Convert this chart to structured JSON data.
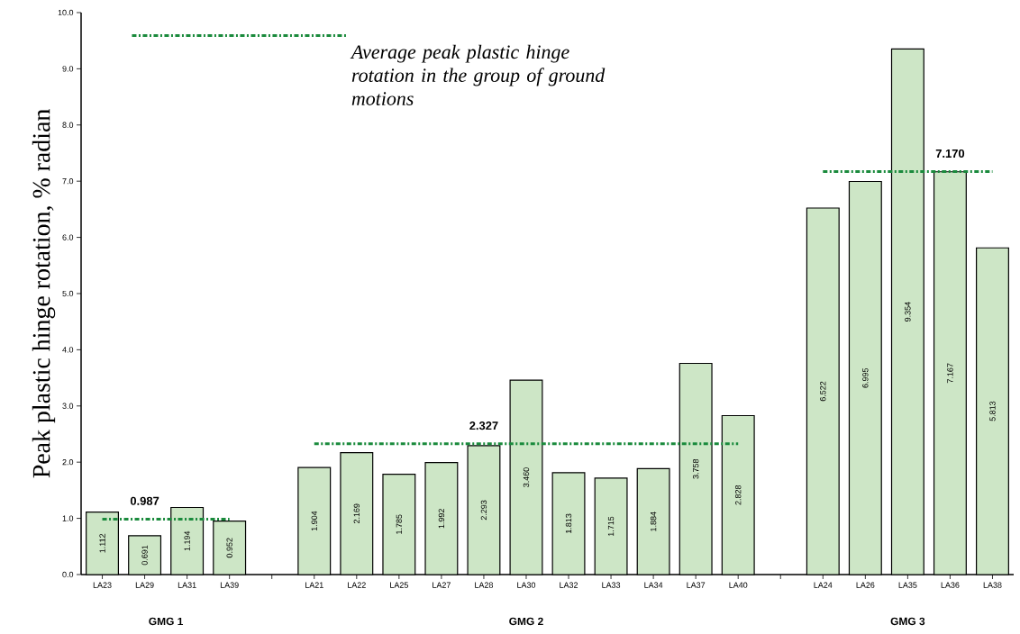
{
  "chart_data": {
    "type": "bar",
    "ylabel": "Peak plastic hinge rotation, % radian",
    "categories": [
      "LA23",
      "LA29",
      "LA31",
      "LA39",
      null,
      "LA21",
      "LA22",
      "LA25",
      "LA27",
      "LA28",
      "LA30",
      "LA32",
      "LA33",
      "LA34",
      "LA37",
      "LA40",
      null,
      "LA24",
      "LA26",
      "LA35",
      "LA36",
      "LA38"
    ],
    "series": [
      {
        "color": "#cde6c6",
        "values": [
          1.112,
          0.691,
          1.194,
          0.952,
          null,
          1.904,
          2.169,
          1.785,
          1.992,
          2.293,
          3.46,
          1.813,
          1.715,
          1.884,
          3.758,
          2.828,
          null,
          6.522,
          6.995,
          9.354,
          7.167,
          5.813
        ],
        "value_labels": [
          "1.112",
          "0.691",
          "1.194",
          "0.952",
          null,
          "1.904",
          "2.169",
          "1.785",
          "1.992",
          "2.293",
          "3.460",
          "1.813",
          "1.715",
          "1.884",
          "3.758",
          "2.828",
          null,
          "6.522",
          "6.995",
          "9.354",
          "7.167",
          "5.813"
        ]
      },
      {
        "type": "line",
        "name": "Average peak plastic hinge rotation in the group of ground motions",
        "color": "#1a8a3c",
        "line_style": "dotted",
        "values": [
          0.987,
          0.987,
          0.987,
          0.987,
          null,
          2.327,
          2.327,
          2.327,
          2.327,
          2.327,
          2.327,
          2.327,
          2.327,
          2.327,
          2.327,
          2.327,
          null,
          7.17,
          7.17,
          7.17,
          7.17,
          7.17
        ],
        "value_labels": [
          null,
          "0.987",
          null,
          null,
          null,
          null,
          null,
          null,
          null,
          "2.327",
          null,
          null,
          null,
          null,
          null,
          null,
          null,
          null,
          null,
          null,
          "7.170",
          null
        ]
      }
    ],
    "ylim": [
      0,
      10
    ],
    "yticks": [
      {
        "value": 0,
        "label": "0.0"
      },
      {
        "value": 1,
        "label": "1.0"
      },
      {
        "value": 2,
        "label": "2.0"
      },
      {
        "value": 3,
        "label": "3.0"
      },
      {
        "value": 4,
        "label": "4.0"
      },
      {
        "value": 5,
        "label": "5.0"
      },
      {
        "value": 6,
        "label": "6.0"
      },
      {
        "value": 7,
        "label": "7.0"
      },
      {
        "value": 8,
        "label": "8.0"
      },
      {
        "value": 9,
        "label": "9.0"
      },
      {
        "value": 10,
        "label": "10.0"
      }
    ],
    "legend": "top left",
    "annotations": [
      "GMG 1",
      "GMG 2",
      "GMG 3"
    ]
  }
}
